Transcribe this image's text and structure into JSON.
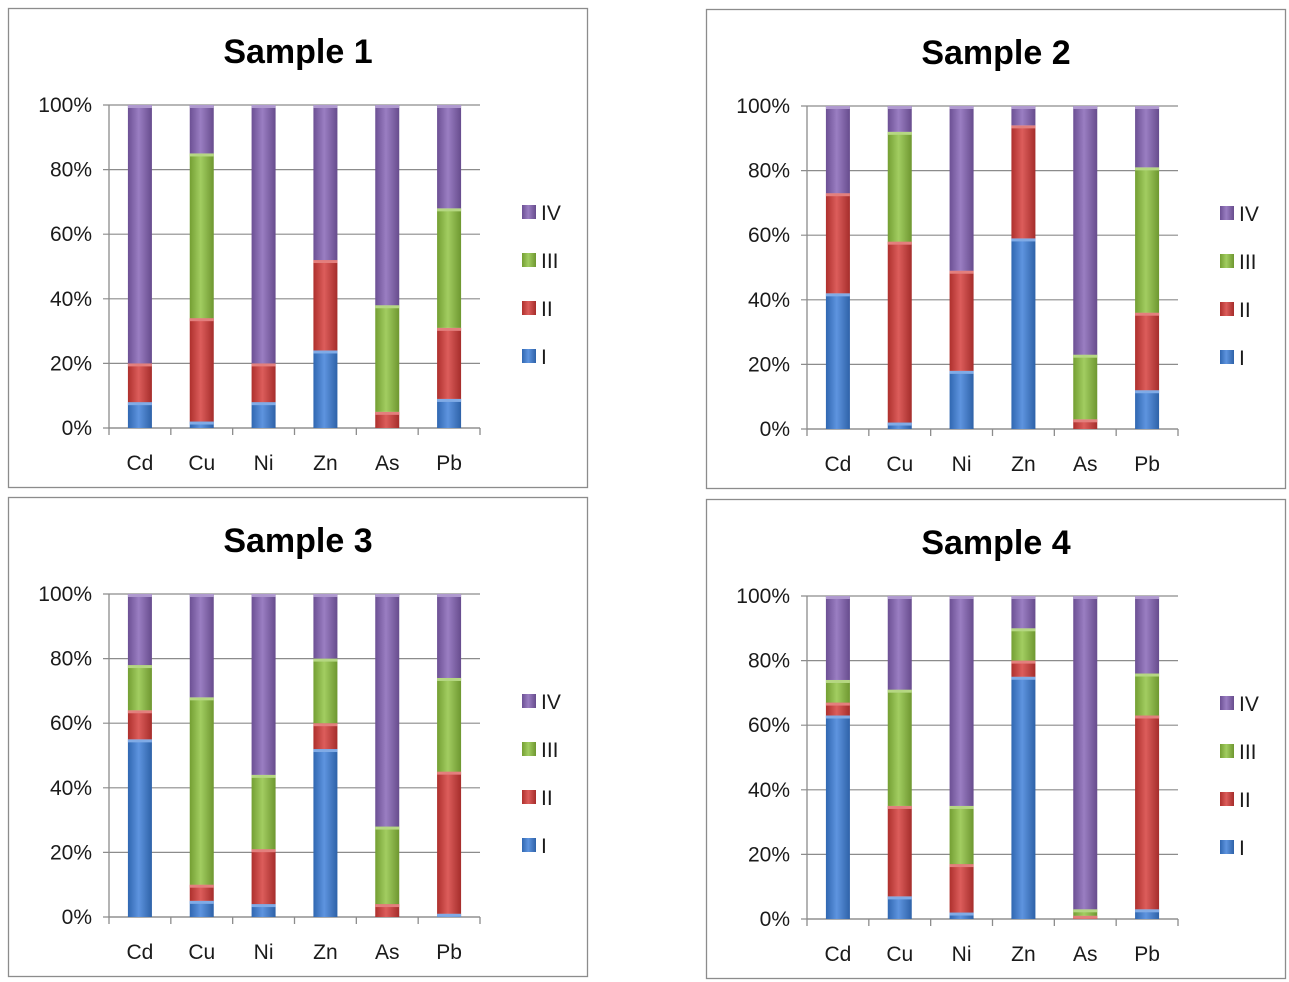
{
  "series_colors": {
    "I": "#3b7dd8",
    "II": "#d43a37",
    "III": "#8dc23e",
    "IV": "#8462b5"
  },
  "chart_data": [
    {
      "type": "bar",
      "stacked": "percent",
      "title": "Sample 1",
      "categories": [
        "Cd",
        "Cu",
        "Ni",
        "Zn",
        "As",
        "Pb"
      ],
      "yticks": [
        "0%",
        "20%",
        "40%",
        "60%",
        "80%",
        "100%"
      ],
      "ylim": [
        0,
        100
      ],
      "legend_position": "right",
      "series": [
        {
          "name": "I",
          "values": [
            8,
            2,
            8,
            24,
            0,
            9
          ]
        },
        {
          "name": "II",
          "values": [
            12,
            32,
            12,
            28,
            5,
            22
          ]
        },
        {
          "name": "III",
          "values": [
            0,
            51,
            0,
            0,
            33,
            37
          ]
        },
        {
          "name": "IV",
          "values": [
            80,
            15,
            80,
            48,
            62,
            32
          ]
        }
      ]
    },
    {
      "type": "bar",
      "stacked": "percent",
      "title": "Sample 2",
      "categories": [
        "Cd",
        "Cu",
        "Ni",
        "Zn",
        "As",
        "Pb"
      ],
      "yticks": [
        "0%",
        "20%",
        "40%",
        "60%",
        "80%",
        "100%"
      ],
      "ylim": [
        0,
        100
      ],
      "legend_position": "right",
      "series": [
        {
          "name": "I",
          "values": [
            42,
            2,
            18,
            59,
            0,
            12
          ]
        },
        {
          "name": "II",
          "values": [
            31,
            56,
            31,
            35,
            3,
            24
          ]
        },
        {
          "name": "III",
          "values": [
            0,
            34,
            0,
            0,
            20,
            45
          ]
        },
        {
          "name": "IV",
          "values": [
            27,
            8,
            51,
            6,
            77,
            19
          ]
        }
      ]
    },
    {
      "type": "bar",
      "stacked": "percent",
      "title": "Sample 3",
      "categories": [
        "Cd",
        "Cu",
        "Ni",
        "Zn",
        "As",
        "Pb"
      ],
      "yticks": [
        "0%",
        "20%",
        "40%",
        "60%",
        "80%",
        "100%"
      ],
      "ylim": [
        0,
        100
      ],
      "legend_position": "right",
      "series": [
        {
          "name": "I",
          "values": [
            55,
            5,
            4,
            52,
            0,
            1
          ]
        },
        {
          "name": "II",
          "values": [
            9,
            5,
            17,
            8,
            4,
            44
          ]
        },
        {
          "name": "III",
          "values": [
            14,
            58,
            23,
            20,
            24,
            29
          ]
        },
        {
          "name": "IV",
          "values": [
            22,
            32,
            56,
            20,
            72,
            26
          ]
        }
      ]
    },
    {
      "type": "bar",
      "stacked": "percent",
      "title": "Sample 4",
      "categories": [
        "Cd",
        "Cu",
        "Ni",
        "Zn",
        "As",
        "Pb"
      ],
      "yticks": [
        "0%",
        "20%",
        "40%",
        "60%",
        "80%",
        "100%"
      ],
      "ylim": [
        0,
        100
      ],
      "legend_position": "right",
      "series": [
        {
          "name": "I",
          "values": [
            63,
            7,
            2,
            75,
            0,
            3
          ]
        },
        {
          "name": "II",
          "values": [
            4,
            28,
            15,
            5,
            1,
            60
          ]
        },
        {
          "name": "III",
          "values": [
            7,
            36,
            18,
            10,
            2,
            13
          ]
        },
        {
          "name": "IV",
          "values": [
            26,
            29,
            65,
            10,
            97,
            24
          ]
        }
      ]
    }
  ]
}
